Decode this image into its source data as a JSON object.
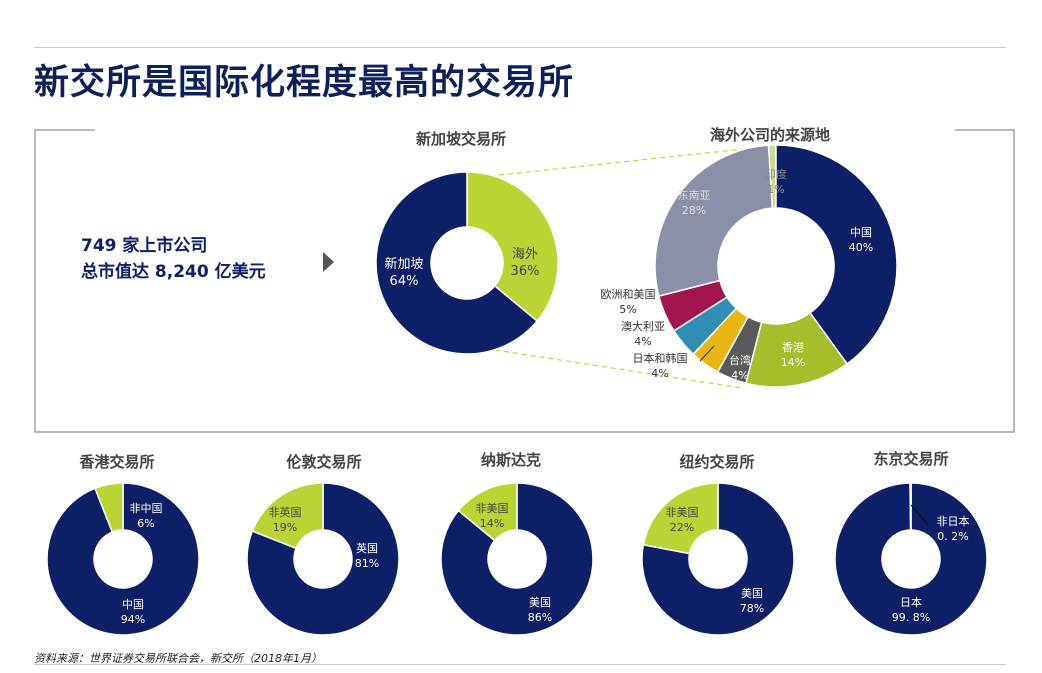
{
  "title": "新交所是国际化程度最高的交易所",
  "source": "资料来源：世界证券交易所联合会，新交所（2018年1月）",
  "summary": {
    "line1": "749 家上市公司",
    "line2": "总市值达 8,240 亿美元"
  },
  "colors": {
    "navy": "#0d1f66",
    "lime": "#b9d433",
    "gray": "#8c8fa8",
    "olive": "#a6be2c"
  },
  "chart_data": [
    {
      "type": "pie",
      "title": "新加坡交易所",
      "categories": [
        "海外",
        "新加坡"
      ],
      "values": [
        36,
        64
      ],
      "labels": [
        [
          "海外",
          "36%"
        ],
        [
          "新加坡",
          "64%"
        ]
      ]
    },
    {
      "type": "pie",
      "title": "海外公司的来源地",
      "categories": [
        "印度",
        "中国",
        "香港",
        "台湾",
        "日本和韩国",
        "澳大利亚",
        "欧洲和美国",
        "东南亚"
      ],
      "values": [
        1,
        40,
        14,
        4,
        4,
        4,
        5,
        28
      ],
      "labels": [
        [
          "印度",
          "1%"
        ],
        [
          "中国",
          "40%"
        ],
        [
          "香港",
          "14%"
        ],
        [
          "台湾",
          "4%"
        ],
        [
          "日本和韩国",
          "4%"
        ],
        [
          "澳大利亚",
          "4%"
        ],
        [
          "欧洲和美国",
          "5%"
        ],
        [
          "东南亚",
          "28%"
        ]
      ]
    },
    {
      "type": "pie",
      "title": "香港交易所",
      "categories": [
        "中国",
        "非中国"
      ],
      "values": [
        94,
        6
      ],
      "labels": [
        [
          "中国",
          "94%"
        ],
        [
          "非中国",
          "6%"
        ]
      ]
    },
    {
      "type": "pie",
      "title": "伦敦交易所",
      "categories": [
        "英国",
        "非英国"
      ],
      "values": [
        81,
        19
      ],
      "labels": [
        [
          "英国",
          "81%"
        ],
        [
          "非英国",
          "19%"
        ]
      ]
    },
    {
      "type": "pie",
      "title": "纳斯达克",
      "categories": [
        "美国",
        "非美国"
      ],
      "values": [
        86,
        14
      ],
      "labels": [
        [
          "美国",
          "86%"
        ],
        [
          "非美国",
          "14%"
        ]
      ]
    },
    {
      "type": "pie",
      "title": "纽约交易所",
      "categories": [
        "美国",
        "非美国"
      ],
      "values": [
        78,
        22
      ],
      "labels": [
        [
          "美国",
          "78%"
        ],
        [
          "非美国",
          "22%"
        ]
      ]
    },
    {
      "type": "pie",
      "title": "东京交易所",
      "categories": [
        "日本",
        "非日本"
      ],
      "values": [
        99.8,
        0.2
      ],
      "labels": [
        [
          "日本",
          "99. 8%"
        ],
        [
          "非日本",
          "0. 2%"
        ]
      ]
    }
  ]
}
